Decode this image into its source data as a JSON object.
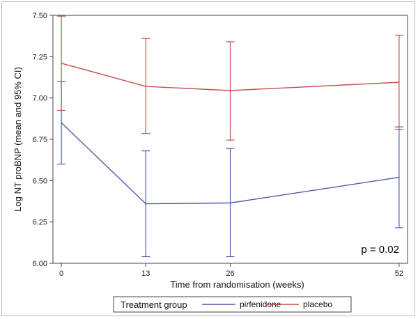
{
  "chart_data": {
    "type": "line",
    "title": "",
    "xlabel": "Time from randomisation (weeks)",
    "ylabel": "Log NT proBNP (mean and 95% CI)",
    "x": [
      0,
      13,
      26,
      52
    ],
    "x_ticks": [
      "0",
      "13",
      "26",
      "52"
    ],
    "y_ticks": [
      "6.00",
      "6.25",
      "6.50",
      "6.75",
      "7.00",
      "7.25",
      "7.50"
    ],
    "xlim": [
      -1.3,
      53.3
    ],
    "ylim": [
      6.0,
      7.5
    ],
    "grid": false,
    "legend_title": "Treatment group",
    "legend_position": "bottom",
    "annotation": "p = 0.02",
    "series": [
      {
        "name": "pirfenidone",
        "color": "#4a5ba8",
        "mean": [
          6.85,
          6.36,
          6.365,
          6.52
        ],
        "ci_lower": [
          6.6,
          6.04,
          6.04,
          6.215
        ],
        "ci_upper": [
          7.1,
          6.68,
          6.695,
          6.825
        ]
      },
      {
        "name": "placebo",
        "color": "#c0504d",
        "mean": [
          7.21,
          7.07,
          7.045,
          7.095
        ],
        "ci_lower": [
          6.925,
          6.785,
          6.745,
          6.81
        ],
        "ci_upper": [
          7.495,
          7.36,
          7.34,
          7.38
        ]
      }
    ]
  }
}
